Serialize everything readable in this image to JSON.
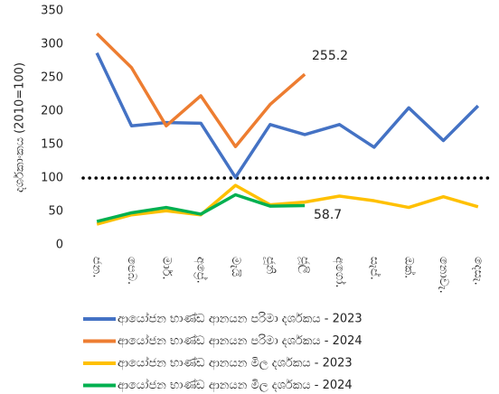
{
  "chart_data": {
    "type": "line",
    "y_label": "දර්ශකාංකය (2010=100)",
    "categories": [
      "ජන.",
      "පෙබ.",
      "මාර්.",
      "අප්‍රේ.",
      "මැයි",
      "ජූනි",
      "ජූලි",
      "අගෝ.",
      "සැප්.",
      "ඔක්.",
      "නොවැ.",
      "දෙසැ."
    ],
    "series": [
      {
        "name": "ආයෝජන භාණ්ඩ ආනයන පරිමා දර්ශකය - 2023",
        "color": "#4472c4",
        "values": [
          287,
          178,
          183,
          182,
          101,
          180,
          165,
          180,
          146,
          205,
          156,
          208
        ]
      },
      {
        "name": "ආයෝජන භාණ්ඩ ආනයන පරිමා දර්ශකය - 2024",
        "color": "#ed7d31",
        "values": [
          316,
          265,
          178,
          223,
          147,
          210,
          255.2,
          null,
          null,
          null,
          null,
          null
        ]
      },
      {
        "name": "ආයෝජන භාණ්ඩ ආනයන මිල දර්ශකය - 2023",
        "color": "#ffc000",
        "values": [
          31,
          45,
          51,
          45,
          89,
          60,
          64,
          73,
          66,
          56,
          72,
          57
        ]
      },
      {
        "name": "ආයෝජන භාණ්ඩ ආනයන මිල දර්ශකය - 2024",
        "color": "#00b050",
        "values": [
          35,
          48,
          56,
          46,
          75,
          58,
          58.7,
          null,
          null,
          null,
          null,
          null
        ]
      }
    ],
    "annotations": [
      "255.2",
      "58.7"
    ],
    "reference_line": 100,
    "ylim": [
      0,
      350
    ],
    "yticks": [
      0,
      50,
      100,
      150,
      200,
      250,
      300,
      350
    ],
    "grid": false
  }
}
